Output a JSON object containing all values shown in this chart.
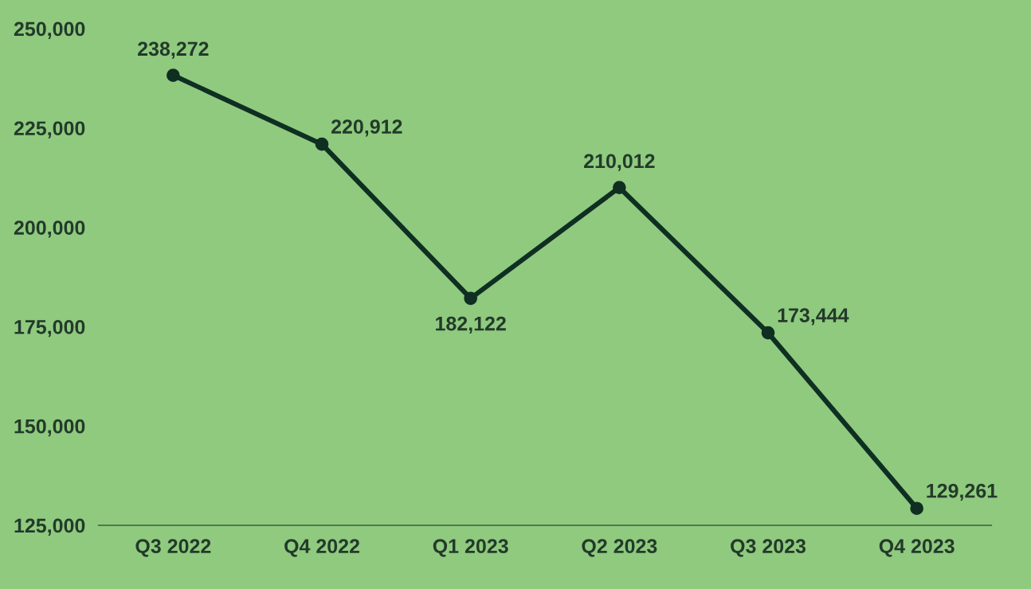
{
  "chart_data": {
    "type": "line",
    "categories": [
      "Q3 2022",
      "Q4 2022",
      "Q1 2023",
      "Q2 2023",
      "Q3 2023",
      "Q4 2023"
    ],
    "values": [
      238272,
      220912,
      182122,
      210012,
      173444,
      129261
    ],
    "value_labels": [
      "238,272",
      "220,912",
      "182,122",
      "210,012",
      "173,444",
      "129,261"
    ],
    "color": "#0f2f22",
    "marker": "circle",
    "line_style": "solid",
    "grid": false,
    "ylim": [
      125000,
      250000
    ],
    "yticks": [
      {
        "value": 125000,
        "label": "125,000"
      },
      {
        "value": 150000,
        "label": "150,000"
      },
      {
        "value": 175000,
        "label": "175,000"
      },
      {
        "value": 200000,
        "label": "200,000"
      },
      {
        "value": 225000,
        "label": "225,000"
      },
      {
        "value": 250000,
        "label": "250,000"
      }
    ]
  }
}
